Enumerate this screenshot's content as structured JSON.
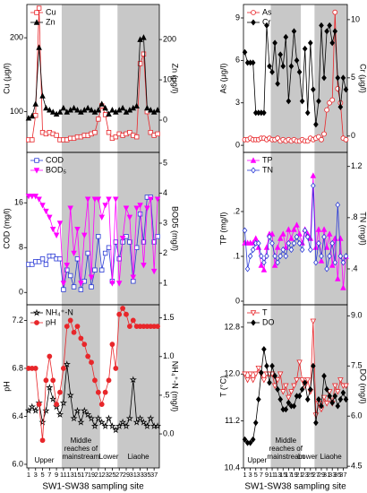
{
  "x": [
    1,
    2,
    3,
    4,
    5,
    6,
    7,
    8,
    9,
    10,
    11,
    12,
    13,
    14,
    15,
    16,
    17,
    18,
    19,
    20,
    21,
    22,
    23,
    24,
    25,
    26,
    27,
    28,
    29,
    30,
    31,
    32,
    33,
    34,
    35,
    36,
    37,
    38
  ],
  "regions": [
    {
      "label": [
        "Upper"
      ],
      "start": 0.5,
      "end": 10.5,
      "shaded": false
    },
    {
      "label": [
        "Middle",
        "reaches of",
        "mainstream"
      ],
      "start": 10.5,
      "end": 21.5,
      "shaded": true
    },
    {
      "label": [
        "Lower"
      ],
      "start": 21.5,
      "end": 26.5,
      "shaded": false
    },
    {
      "label": [
        "Liaohe"
      ],
      "start": 26.5,
      "end": 38.5,
      "shaded": true
    }
  ],
  "shade_color": "#c8c8c8",
  "chart_data": [
    {
      "type": "line",
      "legend": "upper left",
      "xlim": [
        0.5,
        38.5
      ],
      "ylabel": "Cu (μg/l)",
      "y2label": "Zn (μg/l)",
      "ylim": [
        45,
        245
      ],
      "yticks": [
        100,
        200
      ],
      "y2lim": [
        -80,
        287
      ],
      "y2ticks": [
        0,
        100,
        200
      ],
      "series": [
        {
          "name": "Cu",
          "color": "#e8262a",
          "marker": "square",
          "filled": false,
          "values": [
            62,
            62,
            95,
            240,
            72,
            70,
            72,
            70,
            68,
            62,
            62,
            62,
            64,
            64,
            66,
            66,
            68,
            68,
            70,
            72,
            90,
            108,
            96,
            72,
            64,
            66,
            70,
            68,
            70,
            72,
            68,
            66,
            165,
            178,
            100,
            72,
            68,
            70
          ]
        },
        {
          "name": "Zn",
          "color": "#000000",
          "marker": "triangle",
          "filled": true,
          "axis": "y2",
          "values": [
            5,
            10,
            40,
            180,
            60,
            30,
            25,
            20,
            15,
            20,
            30,
            20,
            25,
            30,
            25,
            20,
            25,
            30,
            25,
            20,
            25,
            40,
            30,
            15,
            25,
            20,
            25,
            30,
            20,
            25,
            30,
            35,
            200,
            205,
            30,
            25,
            20,
            25
          ]
        }
      ]
    },
    {
      "type": "line",
      "legend": "upper left",
      "xlim": [
        0.5,
        38.5
      ],
      "ylabel": "COD (mg/l)",
      "y2label": "BOD5 (mg/l)",
      "ylim": [
        -2.2,
        25
      ],
      "yticks": [
        0,
        8,
        16
      ],
      "y2lim": [
        0.28,
        5.36
      ],
      "y2ticks": [
        1,
        2,
        3,
        4,
        5
      ],
      "series": [
        {
          "name": "COD",
          "color": "#2b3bd6",
          "marker": "square",
          "filled": false,
          "values": [
            5,
            5,
            5.5,
            5.5,
            6,
            5,
            6.5,
            6.5,
            6,
            6,
            0.5,
            4,
            3,
            1,
            6,
            0.5,
            2,
            7,
            1,
            4,
            10,
            4,
            7,
            8,
            2,
            9,
            6,
            9,
            10,
            9,
            2,
            8,
            14,
            9,
            17,
            17,
            9,
            10
          ]
        },
        {
          "name": "BOD₅",
          "color": "#ff00ff",
          "marker": "triangle-down",
          "filled": true,
          "axis": "y2",
          "values": [
            3.9,
            3.9,
            3.9,
            3.8,
            3.6,
            3.4,
            3.2,
            2.8,
            2.6,
            3.0,
            1.0,
            1.6,
            3.5,
            2.0,
            2.8,
            1.0,
            2.6,
            3.8,
            1.2,
            3.8,
            3.8,
            3.2,
            3.6,
            3.8,
            1.0,
            3.8,
            1.0,
            2.5,
            3.5,
            3.2,
            1.2,
            3.5,
            3.6,
            1.6,
            3.5,
            3.8,
            1.4,
            3.8
          ]
        }
      ]
    },
    {
      "type": "line",
      "legend": "upper left",
      "xlim": [
        0.5,
        38.5
      ],
      "ylabel": "pH",
      "y2label": "NH₄⁺-N (mg/l)",
      "ylim": [
        5.97,
        7.33
      ],
      "yticks": [
        {
          "value": 6,
          "label": "6.0"
        },
        6.4,
        6.8,
        7.2
      ],
      "y2lim": [
        -0.44,
        1.67
      ],
      "y2ticks": [
        {
          "value": 0,
          "label": "0.0"
        },
        {
          "value": 0.5,
          "label": ".5"
        },
        {
          "value": 1,
          "label": "1.0"
        },
        1.5
      ],
      "xticks": [
        1,
        3,
        5,
        7,
        9,
        11,
        13,
        15,
        17,
        19,
        21,
        23,
        25,
        27,
        29,
        31,
        33,
        35,
        37
      ],
      "xlabel": "SW1-SW38 sampling site",
      "series": [
        {
          "name": "NH₄⁺-N",
          "color": "#000000",
          "marker": "star",
          "filled": false,
          "axis": "y2",
          "values": [
            0.3,
            0.35,
            0.3,
            0.4,
            0.15,
            0.3,
            0.6,
            0.45,
            0.35,
            0.25,
            0.4,
            0.9,
            0.5,
            0.2,
            0.3,
            0.15,
            0.3,
            0.25,
            0.2,
            0.1,
            0.2,
            0.15,
            0.1,
            0.2,
            0.1,
            0.05,
            0.1,
            0.15,
            0.1,
            0.2,
            0.7,
            0.15,
            0.2,
            0.15,
            0.1,
            0.2,
            0.1,
            0.1
          ]
        },
        {
          "name": "pH",
          "color": "#e8262a",
          "marker": "circle",
          "filled": true,
          "values": [
            6.8,
            6.8,
            6.8,
            6.5,
            6.2,
            6.7,
            6.9,
            6.7,
            6.5,
            6.6,
            6.8,
            7.15,
            7.2,
            7.1,
            7.15,
            7.05,
            7.0,
            6.9,
            6.85,
            6.7,
            6.6,
            6.5,
            6.6,
            6.7,
            7.0,
            6.8,
            7.25,
            7.3,
            7.25,
            7.15,
            7.2,
            7.15,
            7.15,
            7.15,
            7.15,
            7.15,
            7.15,
            7.15
          ]
        }
      ]
    },
    {
      "type": "line",
      "legend": "upper left",
      "xlim": [
        0.5,
        38.5
      ],
      "ylabel": "As (μg/l)",
      "y2label": "Cr (μg/l)",
      "ylim": [
        -0.5,
        9.95
      ],
      "yticks": [
        0,
        3,
        6,
        9
      ],
      "y2lim": [
        -1.4,
        11.3
      ],
      "y2ticks": [
        0,
        5,
        10
      ],
      "series": [
        {
          "name": "As",
          "color": "#e8262a",
          "marker": "circle",
          "filled": false,
          "values": [
            0.4,
            0.4,
            0.5,
            0.4,
            0.4,
            0.4,
            0.5,
            0.5,
            0.4,
            0.5,
            0.4,
            0.4,
            0.5,
            0.3,
            0.4,
            0.3,
            0.4,
            0.3,
            0.4,
            0.3,
            0.3,
            0.4,
            0.3,
            0.3,
            0.5,
            0.4,
            0.5,
            0.6,
            0.4,
            0.8,
            2.5,
            3,
            3.2,
            9.4,
            4,
            3,
            0.5,
            0.4
          ]
        },
        {
          "name": "Cr",
          "color": "#000000",
          "marker": "diamond",
          "filled": true,
          "axis": "y2",
          "values": [
            7.2,
            6.3,
            6.3,
            6.3,
            2,
            2,
            2,
            2,
            9.5,
            6,
            5.5,
            8,
            4.5,
            7,
            6,
            8.5,
            3,
            6,
            9,
            6.5,
            5.5,
            3,
            7.5,
            2,
            8,
            4,
            1,
            3,
            9.5,
            5,
            9,
            9.5,
            8,
            9,
            5,
            2.5,
            5,
            4
          ]
        }
      ]
    },
    {
      "type": "line",
      "legend": "upper left",
      "xlim": [
        0.5,
        38.5
      ],
      "ylabel": "TP (mg/l)",
      "y2label": "TN (mg/l)",
      "ylim": [
        -0.008,
        0.332
      ],
      "yticks": [
        0,
        {
          "value": 0.1,
          "label": ".1"
        },
        {
          "value": 0.2,
          "label": ".2"
        }
      ],
      "y2lim": [
        0.12,
        1.31
      ],
      "y2ticks": [
        {
          "value": 0.4,
          "label": ".4"
        },
        {
          "value": 0.8,
          "label": ".8"
        },
        1.2
      ],
      "series": [
        {
          "name": "TP",
          "color": "#ff00ff",
          "marker": "triangle",
          "filled": true,
          "values": [
            0.13,
            0.13,
            0.13,
            0.13,
            0.14,
            0.12,
            0.08,
            0.07,
            0.12,
            0.15,
            0.15,
            0.08,
            0.12,
            0.14,
            0.15,
            0.12,
            0.16,
            0.14,
            0.16,
            0.17,
            0.15,
            0.13,
            0.16,
            0.15,
            0.14,
            0.28,
            0.12,
            0.16,
            0.09,
            0.16,
            0.12,
            0.15,
            0.08,
            0.14,
            0.05,
            0.14,
            0.03,
            0.1
          ]
        },
        {
          "name": "TN",
          "color": "#2b3bd6",
          "marker": "diamond",
          "filled": false,
          "axis": "y2",
          "values": [
            0.7,
            0.4,
            0.5,
            0.55,
            0.6,
            0.6,
            0.5,
            0.45,
            0.5,
            0.65,
            0.6,
            0.5,
            0.45,
            0.5,
            0.55,
            0.5,
            0.6,
            0.55,
            0.6,
            0.65,
            0.6,
            0.55,
            0.7,
            0.65,
            0.55,
            1.05,
            0.45,
            0.6,
            0.5,
            0.65,
            0.4,
            0.5,
            0.6,
            0.45,
            0.9,
            0.5,
            0.45,
            0.5
          ]
        }
      ]
    },
    {
      "type": "line",
      "legend": "upper left",
      "xlim": [
        0.5,
        38.5
      ],
      "ylabel": "T (°C)",
      "y2label": "DO (mg/l)",
      "ylim": [
        10.4,
        13.18
      ],
      "yticks": [
        10.4,
        11.2,
        {
          "value": 12,
          "label": "12.0"
        },
        12.8
      ],
      "y2lim": [
        4.45,
        9.33
      ],
      "y2ticks": [
        4.5,
        {
          "value": 6,
          "label": "6.0"
        },
        7.5,
        {
          "value": 9,
          "label": "9.0"
        }
      ],
      "xticks": [
        1,
        3,
        5,
        7,
        9,
        11,
        13,
        15,
        17,
        19,
        21,
        23,
        25,
        27,
        29,
        31,
        33,
        35,
        37
      ],
      "xlabel": "SW1-SW38 sampling site",
      "series": [
        {
          "name": "T",
          "color": "#e8262a",
          "marker": "triangle-down",
          "filled": false,
          "values": [
            12.0,
            11.9,
            12.0,
            11.9,
            12.0,
            12.1,
            12.0,
            11.9,
            12.0,
            12.0,
            12.0,
            11.8,
            11.9,
            12.0,
            11.7,
            11.8,
            11.6,
            11.7,
            11.8,
            11.9,
            12.2,
            11.9,
            11.8,
            11.9,
            11.7,
            12.9,
            11.3,
            11.5,
            11.4,
            11.6,
            11.5,
            11.7,
            11.5,
            11.8,
            11.7,
            11.9,
            11.8,
            11.8
          ]
        },
        {
          "name": "DO",
          "color": "#000000",
          "marker": "diamond",
          "filled": true,
          "axis": "y2",
          "values": [
            5.3,
            5.2,
            5.2,
            5.3,
            5.8,
            6.5,
            7.3,
            8.0,
            7.5,
            7.0,
            7.5,
            7.2,
            6.8,
            6.5,
            6.2,
            6.2,
            6.4,
            6.3,
            6.3,
            6.6,
            6.6,
            6.8,
            7.0,
            6.5,
            6.8,
            7.5,
            5.8,
            6.5,
            6.3,
            7.2,
            6.8,
            6.6,
            6.4,
            6.6,
            6.3,
            6.5,
            6.7,
            6.5
          ]
        }
      ]
    }
  ]
}
